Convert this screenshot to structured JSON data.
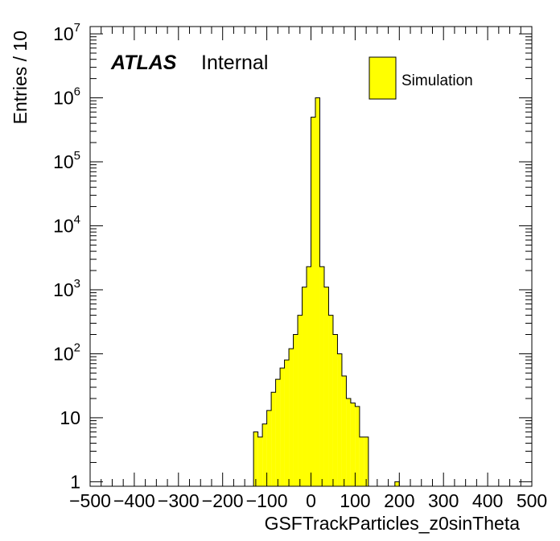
{
  "chart_data": {
    "type": "bar",
    "title": "",
    "xlabel": "GSFTrackParticles_z0sinTheta",
    "ylabel": "Entries / 10",
    "xlim": [
      -500,
      500
    ],
    "ylim": [
      0.85,
      13000000
    ],
    "yscale": "log",
    "bin_width": 10,
    "x_ticks": [
      -500,
      -400,
      -300,
      -200,
      -100,
      0,
      100,
      200,
      300,
      400,
      500
    ],
    "x_tick_labels": [
      "−500",
      "−400",
      "−300",
      "−200",
      "−100",
      "0",
      "100",
      "200",
      "300",
      "400",
      "500"
    ],
    "y_ticks": [
      {
        "value": 1,
        "base": "1",
        "exp": ""
      },
      {
        "value": 10,
        "base": "10",
        "exp": ""
      },
      {
        "value": 100,
        "base": "10",
        "exp": "2"
      },
      {
        "value": 1000,
        "base": "10",
        "exp": "3"
      },
      {
        "value": 10000,
        "base": "10",
        "exp": "4"
      },
      {
        "value": 100000,
        "base": "10",
        "exp": "5"
      },
      {
        "value": 1000000,
        "base": "10",
        "exp": "6"
      },
      {
        "value": 10000000,
        "base": "10",
        "exp": "7"
      }
    ],
    "bin_edges": [
      -130,
      -120,
      -110,
      -100,
      -90,
      -80,
      -70,
      -60,
      -50,
      -40,
      -30,
      -20,
      -10,
      0,
      10,
      20,
      30,
      40,
      50,
      60,
      70,
      80,
      90,
      100,
      110,
      120,
      130,
      140,
      150,
      160,
      170,
      180,
      190,
      200
    ],
    "counts": [
      6,
      5,
      8,
      13,
      25,
      40,
      60,
      80,
      120,
      200,
      400,
      1100,
      2300,
      500000,
      1000000,
      2300,
      1100,
      400,
      200,
      100,
      45,
      20,
      17,
      15,
      5,
      5,
      0,
      0,
      0,
      0,
      0,
      0,
      1
    ],
    "series": [
      {
        "name": "Simulation",
        "color": "#ffff00"
      }
    ],
    "legend": "top-right",
    "grid": false
  },
  "annotation": {
    "experiment": "ATLAS",
    "status": "Internal"
  }
}
